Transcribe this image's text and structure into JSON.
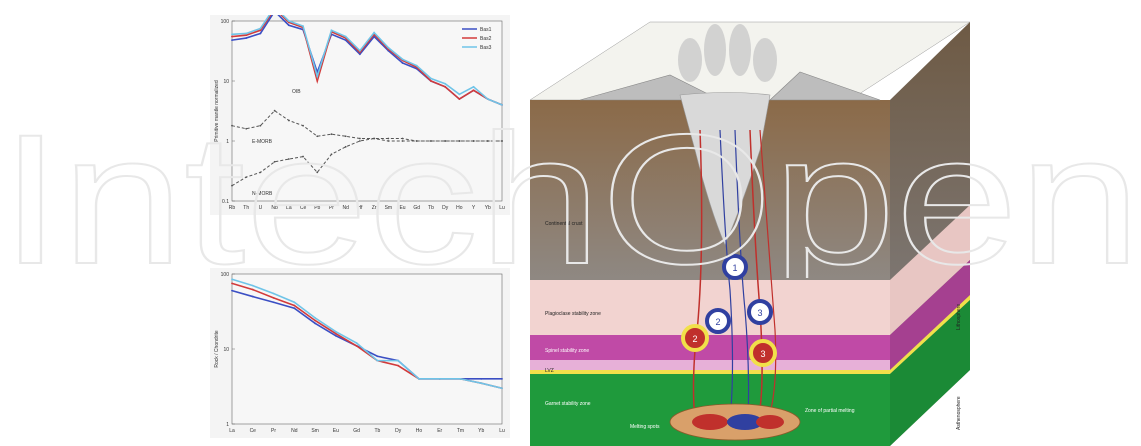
{
  "watermark": "IntechOpen",
  "chart_top": {
    "y_ticks": [
      "100",
      "10",
      "1",
      "0.1"
    ],
    "x_ticks": [
      "Rb",
      "Th",
      "U",
      "Nb",
      "La",
      "Ce",
      "Pb",
      "Pr",
      "Nd",
      "Hf",
      "Zr",
      "Sm",
      "Eu",
      "Gd",
      "Tb",
      "Dy",
      "Ho",
      "Y",
      "Yb",
      "Lu"
    ],
    "ylabel": "Primitive mantle normalized",
    "legend": [
      "Bas1",
      "Bas2",
      "Bas3"
    ],
    "annotations": [
      "OIB",
      "E-MORB",
      "N-MORB"
    ]
  },
  "chart_bottom": {
    "y_ticks": [
      "100",
      "10",
      "1"
    ],
    "x_ticks": [
      "La",
      "Ce",
      "Pr",
      "Nd",
      "Sm",
      "Eu",
      "Gd",
      "Tb",
      "Dy",
      "Ho",
      "Er",
      "Tm",
      "Yb",
      "Lu"
    ],
    "ylabel": "Rock / Chondrite"
  },
  "diagram": {
    "zones": [
      "Continental crust",
      "Plagioclase stability zone",
      "Spinel stability zone",
      "Garnet stability zone"
    ],
    "moho": "LVZ",
    "lithosphere": "Lithosphere",
    "asthenosphere": "Asthenosphere",
    "labels": [
      "Melting spots",
      "Zone of partial melting"
    ],
    "circles_blue": [
      "1",
      "2",
      "3"
    ],
    "circles_yellow": [
      "2",
      "3"
    ]
  },
  "colors": {
    "bas1": "#3b4fc4",
    "bas2": "#d23b3b",
    "bas3": "#6fc4e8"
  },
  "chart_data": [
    {
      "type": "line",
      "categories": [
        "Rb",
        "Th",
        "U",
        "Nb",
        "La",
        "Ce",
        "Pb",
        "Pr",
        "Nd",
        "Hf",
        "Zr",
        "Sm",
        "Eu",
        "Gd",
        "Tb",
        "Dy",
        "Ho",
        "Y",
        "Yb",
        "Lu"
      ],
      "series": [
        {
          "name": "Bas1",
          "values": [
            48,
            52,
            62,
            145,
            85,
            72,
            14,
            60,
            48,
            28,
            55,
            32,
            20,
            16,
            10,
            8,
            5,
            7,
            5,
            4
          ]
        },
        {
          "name": "Bas2",
          "values": [
            55,
            58,
            70,
            160,
            95,
            78,
            10,
            66,
            52,
            30,
            60,
            34,
            22,
            17,
            10,
            8,
            5,
            7,
            5,
            4
          ]
        },
        {
          "name": "Bas3",
          "values": [
            60,
            62,
            75,
            170,
            100,
            82,
            12,
            70,
            55,
            32,
            64,
            36,
            23,
            18,
            11,
            9,
            6,
            8,
            5,
            4
          ]
        },
        {
          "name": "OIB",
          "values": [
            1.8,
            1.6,
            1.8,
            3.2,
            2.2,
            1.8,
            1.2,
            1.3,
            1.2,
            1.1,
            1.1,
            1.0,
            1.0,
            1.0,
            1.0,
            1.0,
            1.0,
            1.0,
            1.0,
            1.0
          ]
        },
        {
          "name": "E-MORB",
          "values": [
            0.18,
            0.25,
            0.3,
            0.45,
            0.5,
            0.55,
            0.3,
            0.6,
            0.8,
            1.0,
            1.1,
            1.1,
            1.1,
            1.0,
            1.0,
            1.0,
            1.0,
            1.0,
            1.0,
            1.0
          ]
        }
      ],
      "ylim": [
        0.1,
        100
      ],
      "yscale": "log"
    },
    {
      "type": "line",
      "categories": [
        "La",
        "Ce",
        "Pr",
        "Nd",
        "Sm",
        "Eu",
        "Gd",
        "Tb",
        "Dy",
        "Ho",
        "Er",
        "Tm",
        "Yb",
        "Lu"
      ],
      "series": [
        {
          "name": "Bas1",
          "values": [
            60,
            50,
            42,
            35,
            22,
            15,
            11,
            8,
            7,
            4,
            4,
            4,
            4,
            4
          ]
        },
        {
          "name": "Bas2",
          "values": [
            75,
            62,
            48,
            38,
            24,
            16,
            11,
            7,
            6,
            4,
            4,
            4,
            3.5,
            3
          ]
        },
        {
          "name": "Bas3",
          "values": [
            85,
            70,
            55,
            42,
            26,
            17,
            12,
            7,
            7,
            4,
            4,
            4,
            3.5,
            3
          ]
        }
      ],
      "ylim": [
        1,
        100
      ],
      "yscale": "log"
    }
  ]
}
